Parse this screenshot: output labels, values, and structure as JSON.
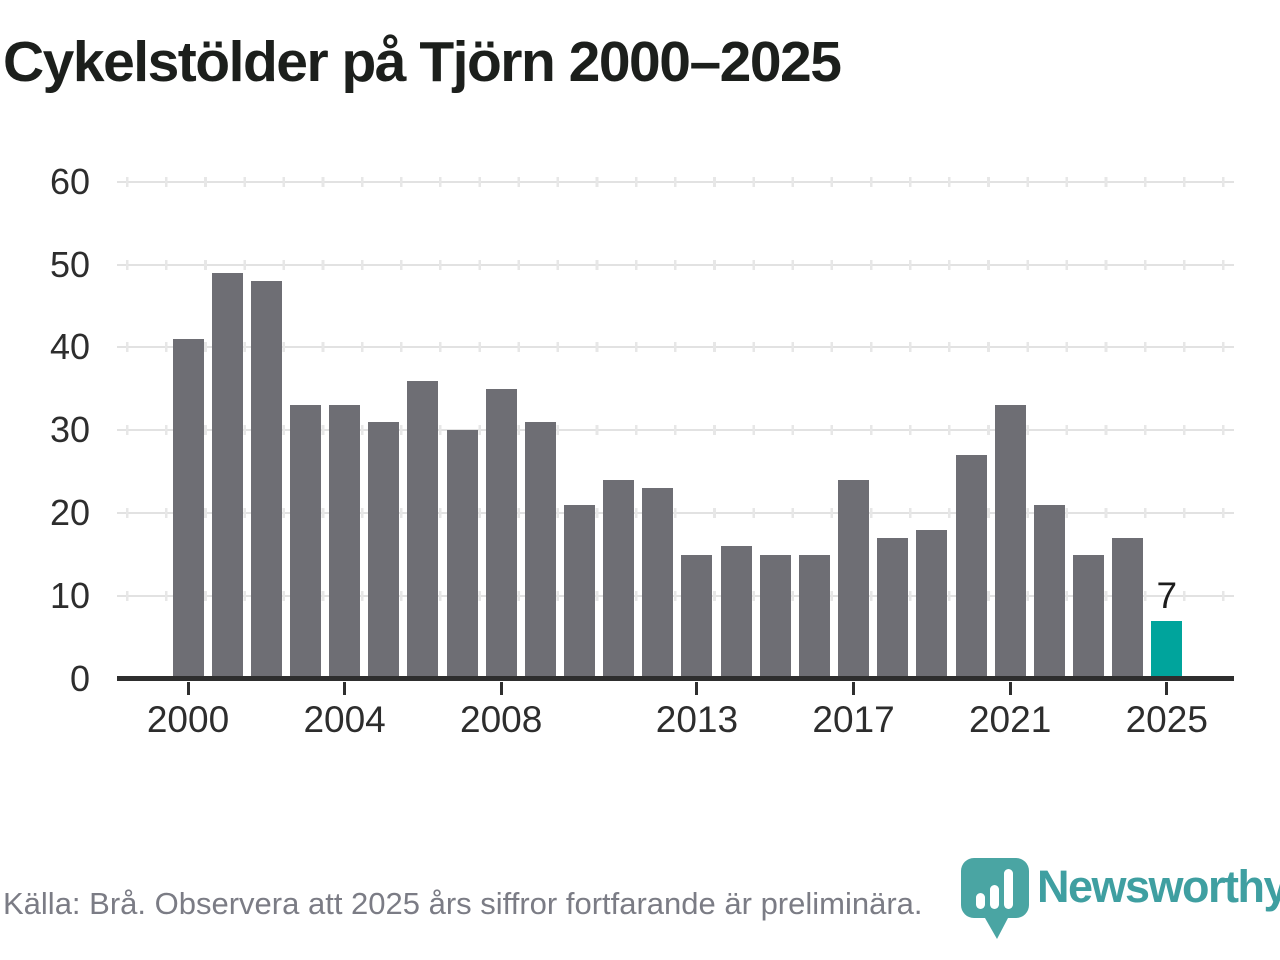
{
  "title": "Cykelstölder på Tjörn 2000–2025",
  "footer": {
    "source_note": "Källa: Brå. Observera att 2025 års siffror fortfarande är preliminära."
  },
  "branding": {
    "logo_text": "Newsworthy"
  },
  "colors": {
    "title_text": "#1c1f1c",
    "axis_text": "#2d2d2d",
    "bar_gray": "#6e6e74",
    "highlight_teal": "#00a49c",
    "brand_teal": "#3f9fa1",
    "logo_pin_teal": "#4aa5a3",
    "footer_gray": "#7b7c85",
    "gridline_gray": "#e2e2e2",
    "axis_line_dark": "#2e2e2e"
  },
  "chart_data": {
    "type": "bar",
    "title": "Cykelstölder på Tjörn 2000–2025",
    "categories": [
      2000,
      2001,
      2002,
      2003,
      2004,
      2005,
      2006,
      2007,
      2008,
      2009,
      2010,
      2011,
      2012,
      2013,
      2014,
      2015,
      2016,
      2017,
      2018,
      2019,
      2020,
      2021,
      2022,
      2023,
      2024,
      2025
    ],
    "values": [
      41,
      49,
      48,
      33,
      33,
      31,
      36,
      30,
      35,
      31,
      21,
      24,
      23,
      15,
      16,
      15,
      15,
      24,
      17,
      18,
      27,
      33,
      21,
      15,
      17,
      7
    ],
    "highlight_index": 25,
    "highlight_label": "7",
    "bar_color": "#6e6e74",
    "highlight_color": "#00a49c",
    "xlabel": "",
    "ylabel": "",
    "ylim": [
      0,
      60
    ],
    "yticks": [
      0,
      10,
      20,
      30,
      40,
      50,
      60
    ],
    "xtick_labels": [
      2000,
      2004,
      2008,
      2013,
      2017,
      2021,
      2025
    ],
    "grid": "horizontal",
    "legend": "none"
  }
}
